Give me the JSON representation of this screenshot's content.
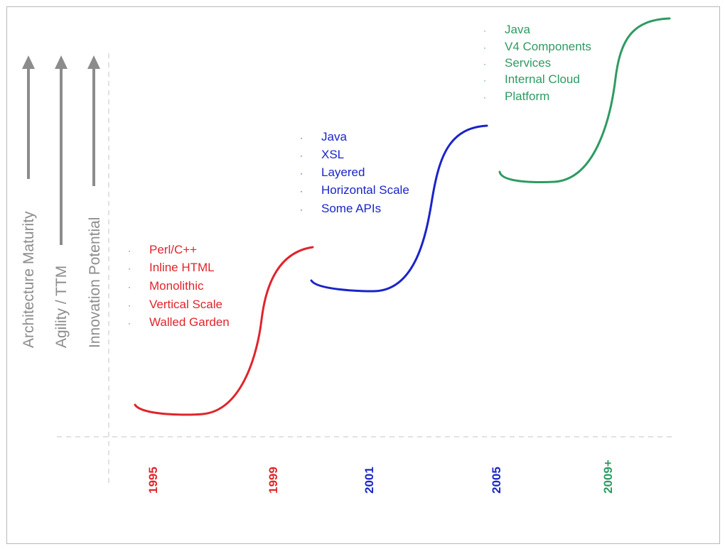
{
  "colors": {
    "era1": "#e0242b",
    "era2": "#1a24c8",
    "era3": "#2e9a62",
    "axis": "#8c8c8c"
  },
  "axes": [
    {
      "label": "Architecture Maturity"
    },
    {
      "label": "Agility / TTM"
    },
    {
      "label": "Innovation Potential"
    }
  ],
  "years": [
    "1995",
    "1999",
    "2001",
    "2005",
    "2009+"
  ],
  "eras": [
    {
      "bullet": "·",
      "items": [
        "Perl/C++",
        "Inline HTML",
        "Monolithic",
        "Vertical Scale",
        "Walled Garden"
      ]
    },
    {
      "bullet": "·",
      "items": [
        "Java",
        "XSL",
        "Layered",
        "Horizontal Scale",
        "Some APIs"
      ]
    },
    {
      "bullet": "·",
      "items": [
        "Java",
        "V4 Components",
        "Services",
        "Internal Cloud",
        "Platform"
      ]
    }
  ]
}
